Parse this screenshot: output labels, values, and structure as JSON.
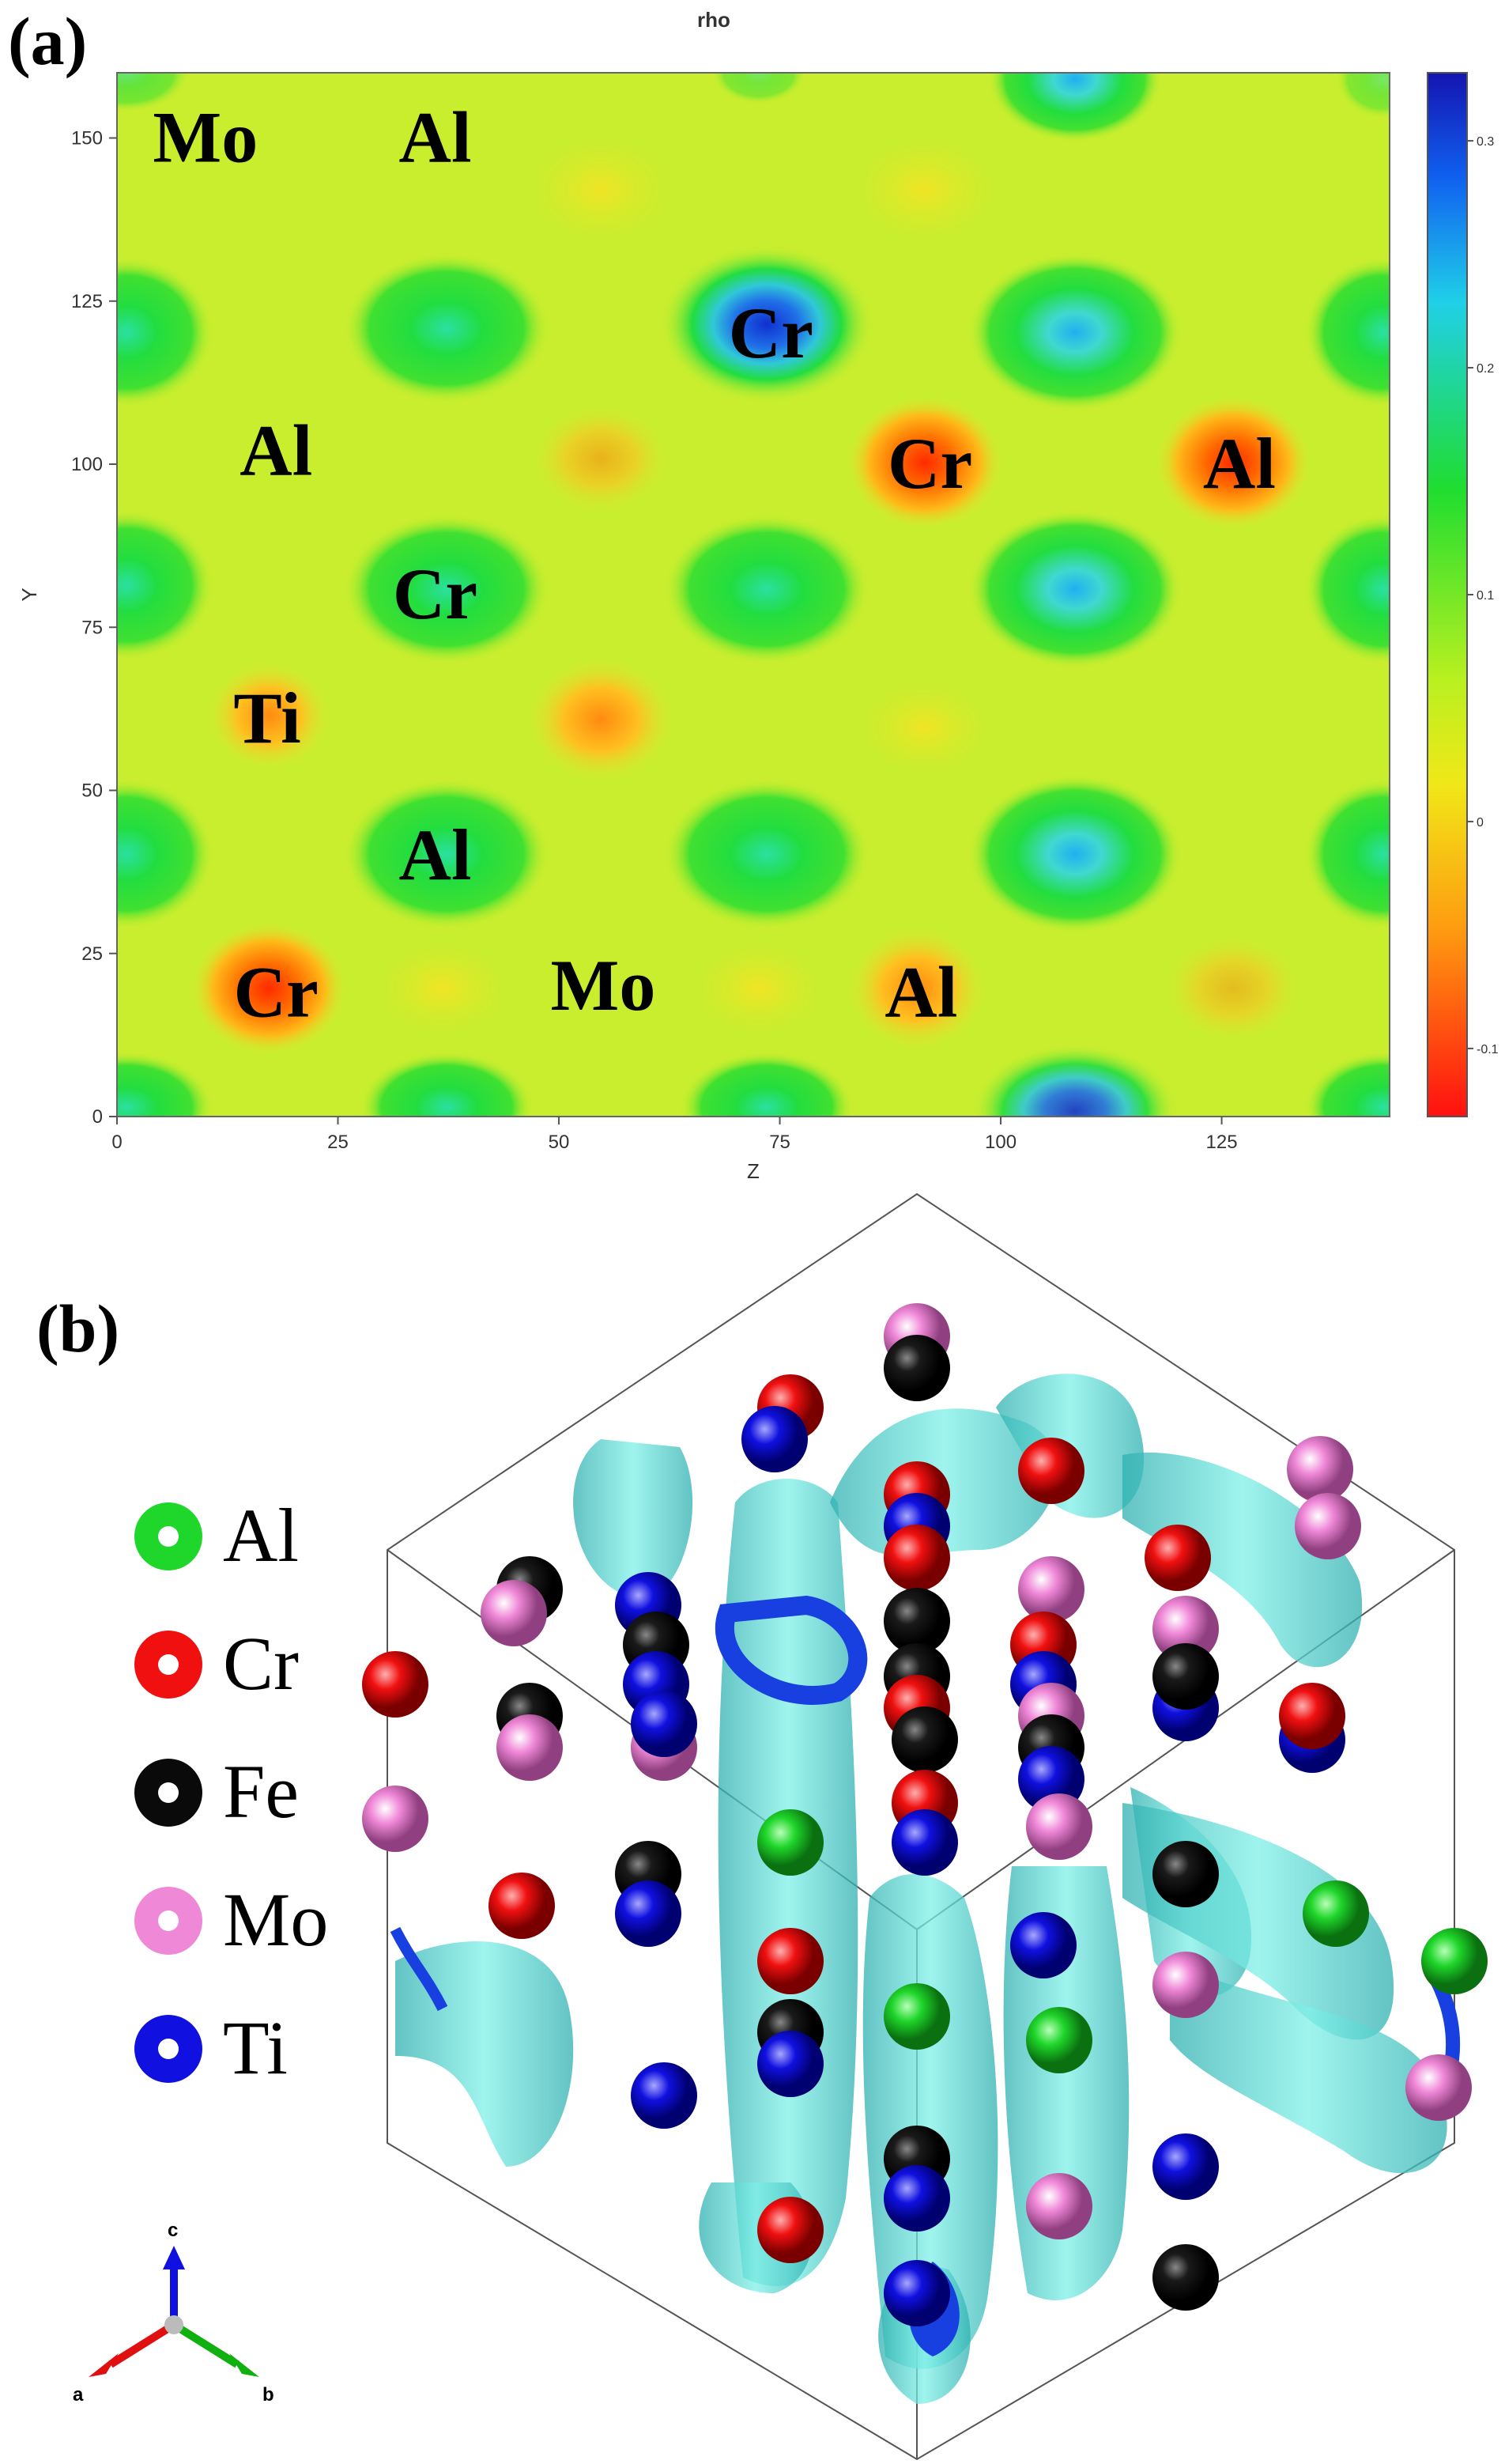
{
  "panel_a": {
    "label": "(a)",
    "title": "rho",
    "x_axis_label": "Z",
    "y_axis_label": "Y",
    "x_ticks": [
      "0",
      "25",
      "50",
      "75",
      "100",
      "125"
    ],
    "y_ticks": [
      "0",
      "25",
      "50",
      "75",
      "100",
      "125",
      "150"
    ],
    "colorbar_ticks": [
      "0.3",
      "0.2",
      "0.1",
      "0",
      "-0.1"
    ],
    "atom_labels": [
      {
        "text": "Mo",
        "z": 10,
        "y": 150
      },
      {
        "text": "Al",
        "z": 36,
        "y": 150
      },
      {
        "text": "Cr",
        "z": 74,
        "y": 120
      },
      {
        "text": "Al",
        "z": 18,
        "y": 102
      },
      {
        "text": "Cr",
        "z": 92,
        "y": 100
      },
      {
        "text": "Al",
        "z": 127,
        "y": 100
      },
      {
        "text": "Cr",
        "z": 36,
        "y": 80
      },
      {
        "text": "Ti",
        "z": 17,
        "y": 61
      },
      {
        "text": "Al",
        "z": 36,
        "y": 40
      },
      {
        "text": "Cr",
        "z": 18,
        "y": 19
      },
      {
        "text": "Mo",
        "z": 55,
        "y": 20
      },
      {
        "text": "Al",
        "z": 91,
        "y": 19
      }
    ],
    "colors": {
      "background": "#c8ee2e",
      "green_spot": "#20dd30",
      "cyan_core": "#38d8b8",
      "blue_core": "#1850e0",
      "red_core": "#ff3c00",
      "orange_spot": "#ff9c10"
    }
  },
  "panel_b": {
    "label": "(b)",
    "legend": [
      {
        "label": "Al",
        "color": "#1fd62a"
      },
      {
        "label": "Cr",
        "color": "#f01010"
      },
      {
        "label": "Fe",
        "color": "#0a0a0a"
      },
      {
        "label": "Mo",
        "color": "#f088d8"
      },
      {
        "label": "Ti",
        "color": "#1010e0"
      }
    ],
    "axes": {
      "a": "a",
      "b": "b",
      "c": "c"
    },
    "colors": {
      "isosurface": "#4fd8d0",
      "isosurface_dark": "#1840e0"
    }
  }
}
